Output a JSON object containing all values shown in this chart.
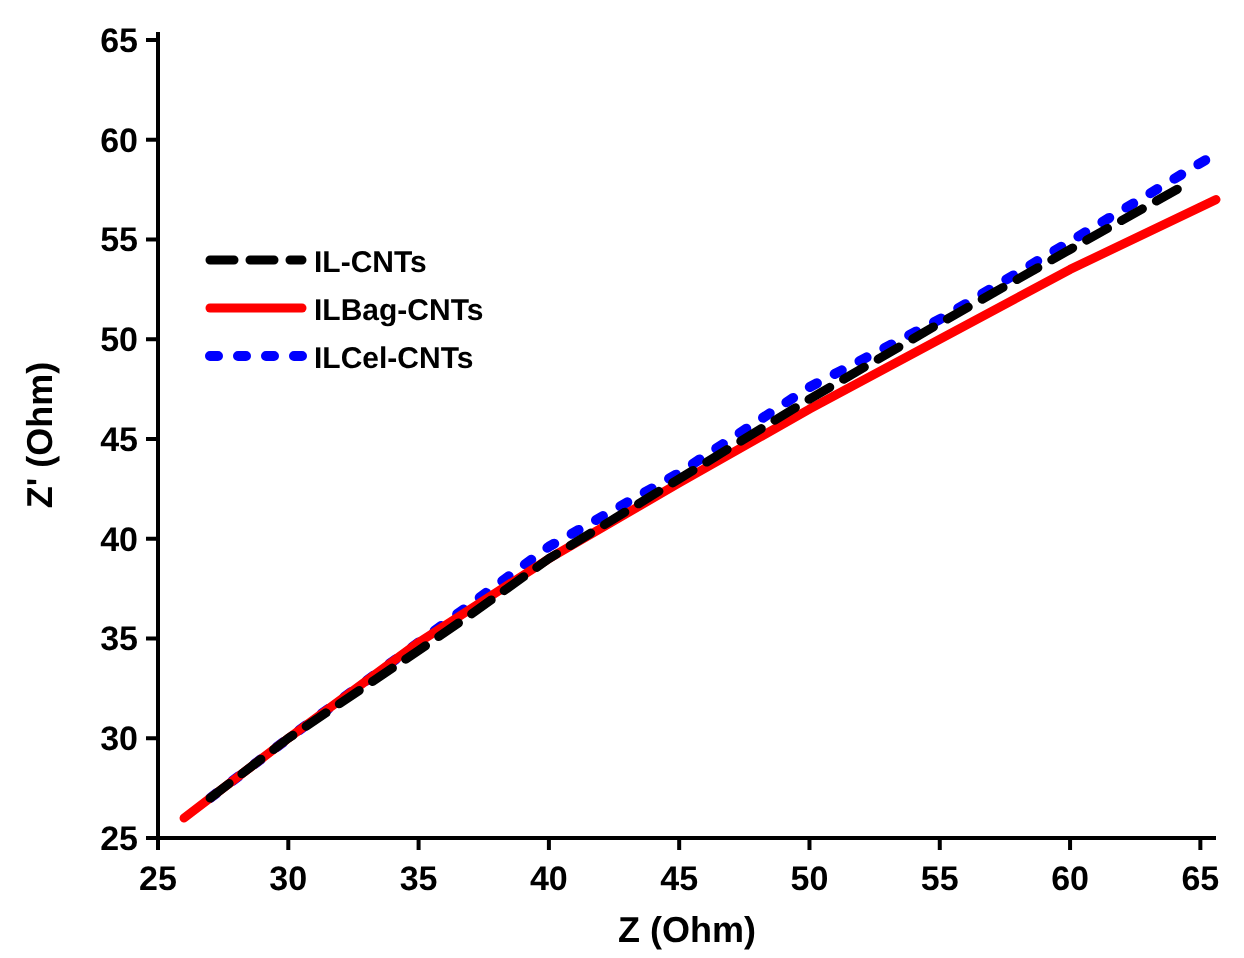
{
  "chart_data": {
    "type": "line",
    "xlabel": "Z (Ohm)",
    "ylabel": "Z' (Ohm)",
    "xlim": [
      25,
      65.6
    ],
    "ylim": [
      25,
      65.4
    ],
    "xticks": [
      25,
      30,
      35,
      40,
      45,
      50,
      55,
      60,
      65
    ],
    "yticks": [
      25,
      30,
      35,
      40,
      45,
      50,
      55,
      60,
      65
    ],
    "grid": false,
    "legend": "left",
    "marker": "none",
    "series": [
      {
        "name": "IL-CNTs",
        "color": "#000000",
        "line_style": "dashed",
        "x": [
          27,
          30,
          35,
          37,
          40,
          45,
          50,
          55,
          60,
          64.5
        ],
        "values": [
          27,
          30,
          34.4,
          36.2,
          39,
          43,
          47,
          50.8,
          54.5,
          57.8
        ]
      },
      {
        "name": "ILBag-CNTs",
        "color": "#ff0000",
        "line_style": "solid",
        "x": [
          26,
          30,
          35,
          40,
          45,
          50,
          55,
          60,
          65.6
        ],
        "values": [
          26,
          30,
          34.8,
          39,
          42.8,
          46.5,
          50,
          53.5,
          57
        ]
      },
      {
        "name": "ILCel-CNTs",
        "color": "#0000ff",
        "line_style": "dotted",
        "x": [
          27,
          30,
          35,
          40,
          45,
          50,
          55,
          60,
          65.6
        ],
        "values": [
          27,
          30,
          34.8,
          39.6,
          43.3,
          47.6,
          51,
          54.9,
          59.3
        ]
      }
    ]
  }
}
